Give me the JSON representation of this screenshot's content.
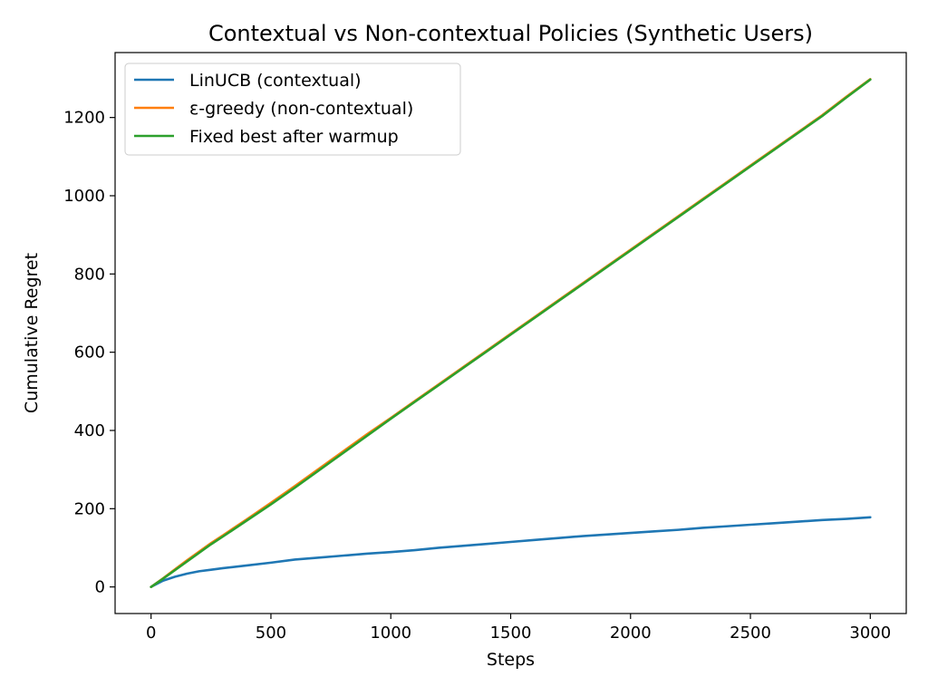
{
  "chart_data": {
    "type": "line",
    "title": "Contextual vs Non-contextual Policies (Synthetic Users)",
    "xlabel": "Steps",
    "ylabel": "Cumulative Regret",
    "xlim": [
      -150,
      3150
    ],
    "ylim": [
      -68,
      1366
    ],
    "xticks": [
      0,
      500,
      1000,
      1500,
      2000,
      2500,
      3000
    ],
    "yticks": [
      0,
      200,
      400,
      600,
      800,
      1000,
      1200
    ],
    "grid": false,
    "legend_position": "upper-left",
    "x": [
      0,
      50,
      100,
      150,
      200,
      250,
      300,
      400,
      500,
      600,
      700,
      800,
      900,
      1000,
      1100,
      1200,
      1300,
      1400,
      1500,
      1600,
      1700,
      1800,
      1900,
      2000,
      2100,
      2200,
      2300,
      2400,
      2500,
      2600,
      2700,
      2800,
      2900,
      3000
    ],
    "series": [
      {
        "name": "LinUCB (contextual)",
        "color": "#1f77b4",
        "values": [
          0,
          16,
          26,
          34,
          40,
          44,
          48,
          55,
          62,
          70,
          75,
          80,
          85,
          89,
          94,
          100,
          105,
          110,
          115,
          120,
          125,
          130,
          134,
          138,
          142,
          146,
          151,
          155,
          159,
          163,
          167,
          171,
          174,
          178
        ]
      },
      {
        "name": "ε-greedy (non-contextual)",
        "color": "#ff7f0e",
        "values": [
          0,
          22,
          45,
          68,
          90,
          112,
          132,
          173,
          215,
          258,
          302,
          346,
          390,
          432,
          475,
          518,
          561,
          604,
          647,
          690,
          733,
          776,
          819,
          862,
          905,
          948,
          991,
          1034,
          1077,
          1120,
          1163,
          1206,
          1253,
          1298
        ]
      },
      {
        "name": "Fixed best after warmup",
        "color": "#2ca02c",
        "values": [
          0,
          21,
          43,
          65,
          87,
          109,
          129,
          170,
          211,
          254,
          298,
          342,
          386,
          430,
          473,
          516,
          559,
          602,
          645,
          688,
          731,
          774,
          817,
          860,
          903,
          946,
          989,
          1032,
          1075,
          1118,
          1161,
          1204,
          1251,
          1297
        ]
      }
    ]
  }
}
